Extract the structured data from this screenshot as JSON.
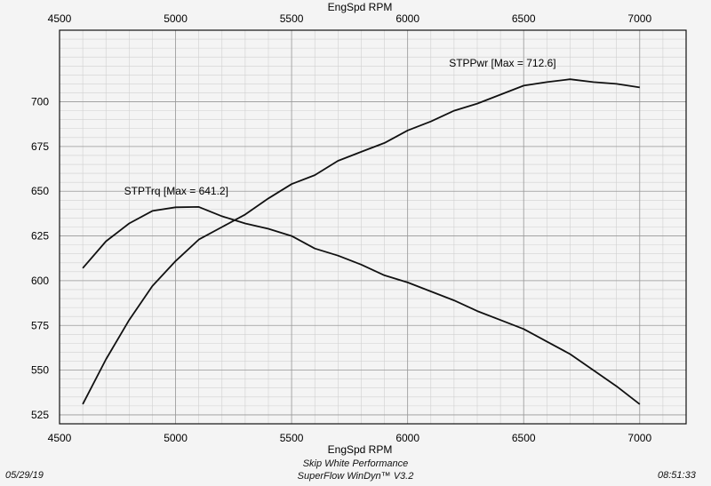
{
  "chart_data": {
    "type": "line",
    "xlabel_top": "EngSpd RPM",
    "xlabel_bottom": "EngSpd RPM",
    "xlim": [
      4500,
      7200
    ],
    "ylim": [
      520,
      740
    ],
    "x_ticks": [
      4500,
      5000,
      5500,
      6000,
      6500,
      7000
    ],
    "y_ticks": [
      525,
      550,
      575,
      600,
      625,
      650,
      675,
      700
    ],
    "grid": true,
    "x": [
      4600,
      4700,
      4800,
      4900,
      5000,
      5100,
      5200,
      5300,
      5400,
      5500,
      5600,
      5700,
      5800,
      5900,
      6000,
      6100,
      6200,
      6300,
      6400,
      6500,
      6600,
      6700,
      6800,
      6900,
      7000
    ],
    "series": [
      {
        "label": "STPPwr [Max = 712.6]",
        "label_at": [
          6500,
          712.6
        ],
        "values": [
          531,
          556,
          578,
          597,
          611,
          623,
          630,
          637,
          646,
          654,
          659,
          667,
          672,
          677,
          684,
          689,
          695,
          699,
          704,
          709,
          711,
          712.6,
          711,
          710,
          708
        ]
      },
      {
        "label": "STPTrq [Max = 641.2]",
        "label_at": [
          5100,
          641.2
        ],
        "values": [
          607,
          622,
          632,
          639,
          641,
          641.2,
          636,
          632,
          629,
          625,
          618,
          614,
          609,
          603,
          599,
          594,
          589,
          583,
          578,
          573,
          566,
          559,
          550,
          541,
          531
        ]
      }
    ]
  },
  "footer": {
    "date": "05/29/19",
    "time": "08:51:33",
    "company": "Skip White Performance",
    "software": "SuperFlow WinDyn™ V3.2"
  }
}
